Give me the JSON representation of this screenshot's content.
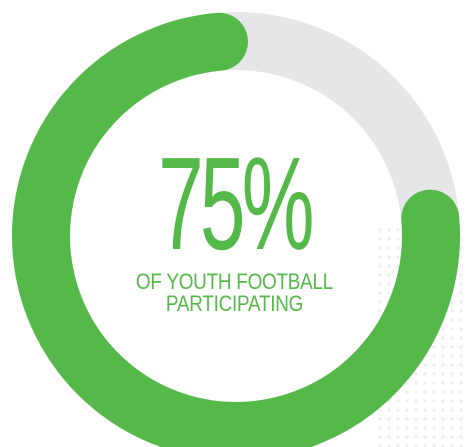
{
  "chart_data": {
    "type": "pie",
    "variant": "donut-progress",
    "value_percent": 75,
    "display_value": "75%",
    "label_lines": [
      "OF YOUTH FOOTBALL",
      "PARTICIPATING"
    ],
    "colors": {
      "filled": "#55b94a",
      "remaining": "#e6e6e8",
      "text": "#55b94a",
      "dots": "#eeeeee"
    }
  }
}
